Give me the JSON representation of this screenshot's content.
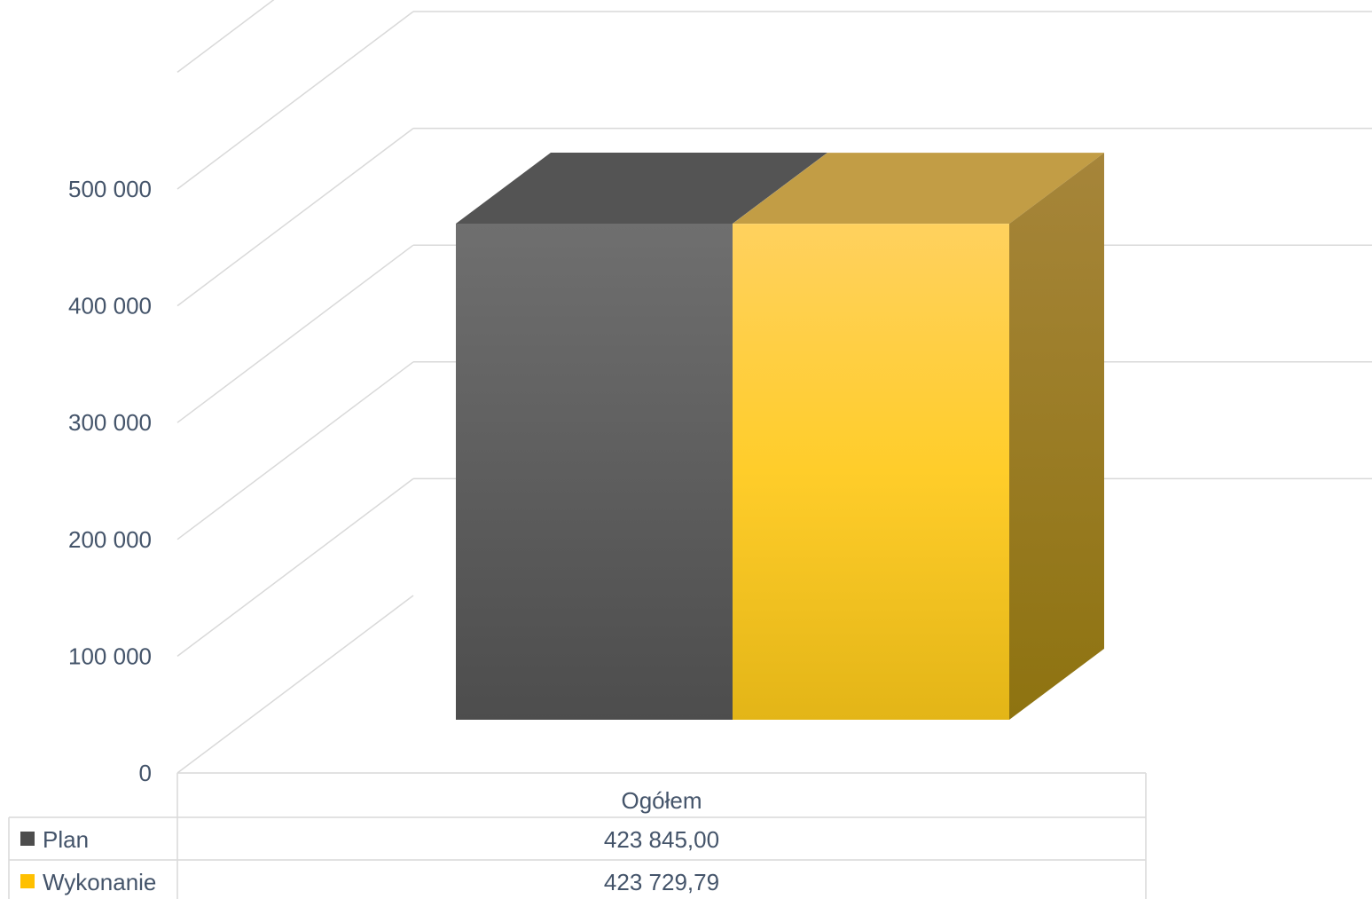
{
  "chart_data": {
    "type": "bar",
    "title": "",
    "xlabel": "",
    "ylabel": "",
    "categories": [
      "Ogółem"
    ],
    "series": [
      {
        "name": "Plan",
        "values": [
          423845.0
        ],
        "value_label": "423 845,00",
        "color": "#595959"
      },
      {
        "name": "Wykonanie",
        "values": [
          423729.79
        ],
        "value_label": "423 729,79",
        "color": "#ffc000"
      }
    ],
    "ylim": [
      0,
      500000
    ],
    "y_ticks": [
      {
        "value": 0,
        "label": "0"
      },
      {
        "value": 100000,
        "label": "100 000"
      },
      {
        "value": 200000,
        "label": "200 000"
      },
      {
        "value": 300000,
        "label": "300 000"
      },
      {
        "value": 400000,
        "label": "400 000"
      },
      {
        "value": 500000,
        "label": "500 000"
      }
    ],
    "grid": true,
    "legend": "data-table-below",
    "style": "3d-clustered-column"
  }
}
